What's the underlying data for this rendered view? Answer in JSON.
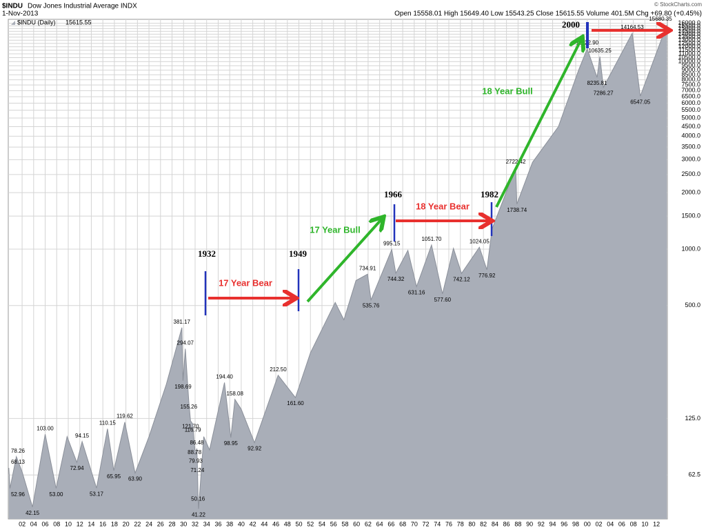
{
  "chart_data": {
    "type": "area",
    "log_scale": true,
    "grid": true,
    "symbol": "$INDU",
    "title": "Dow Jones Industrial Average INDX",
    "date": "1-Nov-2013",
    "quote": "Open 15558.01  High 15649.40  Low 15543.25  Close 15615.55  Volume 401.5M  Chg +69.80 (+0.45%)",
    "credit": "© StockCharts.com",
    "legend_value": 15615.55,
    "xlim": [
      1899.6,
      2013.9
    ],
    "ylim": [
      36.4,
      16800
    ],
    "xticks": [
      {
        "value": 1902,
        "label": "02"
      },
      {
        "value": 1904,
        "label": "04"
      },
      {
        "value": 1906,
        "label": "06"
      },
      {
        "value": 1908,
        "label": "08"
      },
      {
        "value": 1910,
        "label": "10"
      },
      {
        "value": 1912,
        "label": "12"
      },
      {
        "value": 1914,
        "label": "14"
      },
      {
        "value": 1916,
        "label": "16"
      },
      {
        "value": 1918,
        "label": "18"
      },
      {
        "value": 1920,
        "label": "20"
      },
      {
        "value": 1922,
        "label": "22"
      },
      {
        "value": 1924,
        "label": "24"
      },
      {
        "value": 1926,
        "label": "26"
      },
      {
        "value": 1928,
        "label": "28"
      },
      {
        "value": 1930,
        "label": "30"
      },
      {
        "value": 1932,
        "label": "32"
      },
      {
        "value": 1934,
        "label": "34"
      },
      {
        "value": 1936,
        "label": "36"
      },
      {
        "value": 1938,
        "label": "38"
      },
      {
        "value": 1940,
        "label": "40"
      },
      {
        "value": 1942,
        "label": "42"
      },
      {
        "value": 1944,
        "label": "44"
      },
      {
        "value": 1946,
        "label": "46"
      },
      {
        "value": 1948,
        "label": "48"
      },
      {
        "value": 1950,
        "label": "50"
      },
      {
        "value": 1952,
        "label": "52"
      },
      {
        "value": 1954,
        "label": "54"
      },
      {
        "value": 1956,
        "label": "56"
      },
      {
        "value": 1958,
        "label": "58"
      },
      {
        "value": 1960,
        "label": "60"
      },
      {
        "value": 1962,
        "label": "62"
      },
      {
        "value": 1964,
        "label": "64"
      },
      {
        "value": 1966,
        "label": "66"
      },
      {
        "value": 1968,
        "label": "68"
      },
      {
        "value": 1970,
        "label": "70"
      },
      {
        "value": 1972,
        "label": "72"
      },
      {
        "value": 1974,
        "label": "74"
      },
      {
        "value": 1976,
        "label": "76"
      },
      {
        "value": 1978,
        "label": "78"
      },
      {
        "value": 1980,
        "label": "80"
      },
      {
        "value": 1982,
        "label": "82"
      },
      {
        "value": 1984,
        "label": "84"
      },
      {
        "value": 1986,
        "label": "86"
      },
      {
        "value": 1988,
        "label": "88"
      },
      {
        "value": 1990,
        "label": "90"
      },
      {
        "value": 1992,
        "label": "92"
      },
      {
        "value": 1994,
        "label": "94"
      },
      {
        "value": 1996,
        "label": "96"
      },
      {
        "value": 1998,
        "label": "98"
      },
      {
        "value": 2000,
        "label": "00"
      },
      {
        "value": 2002,
        "label": "02"
      },
      {
        "value": 2004,
        "label": "04"
      },
      {
        "value": 2006,
        "label": "06"
      },
      {
        "value": 2008,
        "label": "08"
      },
      {
        "value": 2010,
        "label": "10"
      },
      {
        "value": 2012,
        "label": "12"
      }
    ],
    "yticks": [
      62.5,
      {
        "value": 125,
        "label": "125.0"
      },
      {
        "value": 500,
        "label": "500.0"
      },
      {
        "value": 1000,
        "label": "1000.0"
      },
      {
        "value": 1500,
        "label": "1500.0"
      },
      {
        "value": 2000,
        "label": "2000.0"
      },
      {
        "value": 2500,
        "label": "2500.0"
      },
      {
        "value": 3000,
        "label": "3000.0"
      },
      {
        "value": 3500,
        "label": "3500.0"
      },
      {
        "value": 4000,
        "label": "4000.0"
      },
      {
        "value": 4500,
        "label": "4500.0"
      },
      {
        "value": 5000,
        "label": "5000.0"
      },
      {
        "value": 5500,
        "label": "5500.0"
      },
      {
        "value": 6000,
        "label": "6000.0"
      },
      {
        "value": 6500,
        "label": "6500.0"
      },
      {
        "value": 7000,
        "label": "7000.0"
      },
      {
        "value": 7500,
        "label": "7500.0"
      },
      {
        "value": 8000,
        "label": "8000.0"
      },
      {
        "value": 8500,
        "label": "8500.0"
      },
      {
        "value": 9000,
        "label": "9000.0"
      },
      {
        "value": 9500,
        "label": "9500.0"
      },
      {
        "value": 10000,
        "label": "10000.0"
      },
      {
        "value": 10500,
        "label": "10500.0"
      },
      {
        "value": 11000,
        "label": "11000.0"
      },
      {
        "value": 11500,
        "label": "11500.0"
      },
      {
        "value": 12000,
        "label": "12000.0"
      },
      {
        "value": 12500,
        "label": "12500.0"
      },
      {
        "value": 13000,
        "label": "13000.0"
      },
      {
        "value": 13500,
        "label": "13500.0"
      },
      {
        "value": 14000,
        "label": "14000.0"
      },
      {
        "value": 14500,
        "label": "14500.0"
      },
      {
        "value": 15000,
        "label": "15000.0"
      },
      {
        "value": 15500,
        "label": "15500.0"
      },
      {
        "value": 16000,
        "label": "16000.0"
      }
    ],
    "x": [
      1899.7,
      1899.9,
      1901.0,
      1902.0,
      1903.8,
      1906.0,
      1907.9,
      1909.8,
      1911.5,
      1912.4,
      1914.9,
      1916.8,
      1917.9,
      1919.8,
      1921.6,
      1924.0,
      1927.0,
      1929.7,
      1929.9,
      1930.3,
      1930.9,
      1931.2,
      1931.6,
      1931.9,
      1932.1,
      1932.3,
      1932.4,
      1932.5,
      1932.6,
      1933.5,
      1934.5,
      1937.1,
      1938.2,
      1938.9,
      1940.0,
      1942.3,
      1946.4,
      1949.4,
      1952.0,
      1956.3,
      1957.8,
      1959.9,
      1961.9,
      1962.5,
      1966.1,
      1966.8,
      1968.9,
      1970.4,
      1973.0,
      1974.9,
      1976.8,
      1978.2,
      1981.3,
      1982.6,
      1983.5,
      1987.6,
      1987.8,
      1990.5,
      1995.0,
      1998.5,
      2000.0,
      2001.7,
      2002.2,
      2002.8,
      2007.8,
      2009.2,
      2013.8
    ],
    "series": [
      {
        "name": "$INDU (Daily)",
        "color": "#a9aeb8",
        "line_color": "#8a8f99",
        "values": [
          68.13,
          52.96,
          78.26,
          65,
          42.15,
          103,
          53,
          100,
          72.94,
          94.15,
          53.17,
          110.15,
          65.95,
          119.62,
          63.9,
          100,
          190,
          381.17,
          198.69,
          294.07,
          155.26,
          121.7,
          116.79,
          88.78,
          79.93,
          86.48,
          71.24,
          50.16,
          41.22,
          100,
          85,
          194.4,
          98.95,
          158.08,
          140,
          92.92,
          212.5,
          161.6,
          280,
          520,
          420,
          680,
          734.91,
          535.76,
          995.15,
          744.32,
          985,
          631.16,
          1051.7,
          577.6,
          1010,
          742.12,
          1024.05,
          776.92,
          1280,
          2722.42,
          1738.74,
          2900,
          4500,
          9000,
          11722.9,
          8235.81,
          10635.25,
          7286.27,
          14164.53,
          6547.05,
          15680.35
        ],
        "value_labels": [
          "68.13",
          "52.96",
          "78.26",
          null,
          "42.15",
          "103.00",
          "53.00",
          null,
          "72.94",
          "94.15",
          "53.17",
          "110.15",
          "65.95",
          "119.62",
          "63.90",
          null,
          null,
          "381.17",
          "198.69",
          "294.07",
          "155.26",
          "121.70",
          "116.79",
          "88.78",
          "79.93",
          "86.48",
          "71.24",
          "50.16",
          "41.22",
          null,
          null,
          "194.40",
          "98.95",
          "158.08",
          null,
          "92.92",
          "212.50",
          "161.60",
          null,
          null,
          null,
          null,
          "734.91",
          "535.76",
          "995.15",
          "744.32",
          null,
          "631.16",
          "1051.70",
          "577.60",
          null,
          "742.12",
          "1024.05",
          "776.92",
          null,
          "2722.42",
          "1738.74",
          null,
          null,
          null,
          "11722.90",
          "8235.81",
          "10635.25",
          "7286.27",
          "14164.53",
          "6547.05",
          "15680.35"
        ]
      }
    ],
    "overlay": {
      "years": [
        "1932",
        "1949",
        "1966",
        "1982",
        "2000"
      ],
      "phrases": [
        {
          "text": "17 Year Bear",
          "color": "#e8302e"
        },
        {
          "text": "17 Year Bull",
          "color": "#2fb52b"
        },
        {
          "text": "18 Year Bear",
          "color": "#e8302e"
        },
        {
          "text": "18 Year Bull",
          "color": "#2fb52b"
        }
      ]
    }
  }
}
